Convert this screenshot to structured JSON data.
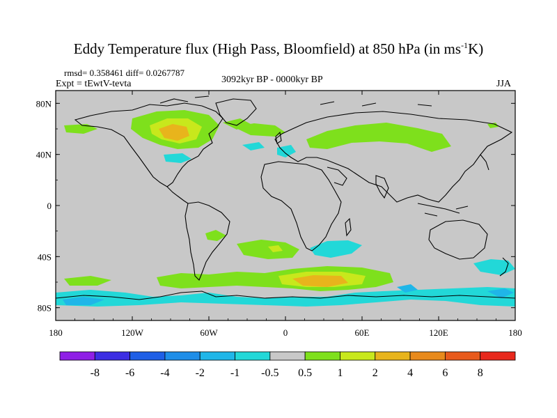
{
  "title": {
    "main": "Eddy Temperature flux (High Pass, Bloomfield) at 850 hPa (in ms",
    "sup": "-1",
    "end": "K)"
  },
  "stats": {
    "rmsd": "rmsd= 0.358461 diff= 0.0267787",
    "expt": "Expt = tEwtV-tevta",
    "period": "3092kyr BP - 0000kyr BP",
    "season": "JJA"
  },
  "axes": {
    "x_ticks": [
      "180",
      "120W",
      "60W",
      "0",
      "60E",
      "120E",
      "180"
    ],
    "y_ticks": [
      "80N",
      "40N",
      "0",
      "40S",
      "80S"
    ]
  },
  "colorbar": {
    "labels": [
      "-8",
      "-6",
      "-4",
      "-2",
      "-1",
      "-0.5",
      "0.5",
      "1",
      "2",
      "4",
      "6",
      "8"
    ],
    "colors": [
      "#8f1fe6",
      "#3d2ee3",
      "#1f5fe6",
      "#1f8ee8",
      "#1fb6e8",
      "#22d8d8",
      "#c8c8c8",
      "#7ee01c",
      "#c8e81c",
      "#e8b41c",
      "#e88a1c",
      "#e85a1c",
      "#e8281c"
    ]
  },
  "colors": {
    "land_background": "#c8c8c8",
    "coast": "#000000"
  }
}
